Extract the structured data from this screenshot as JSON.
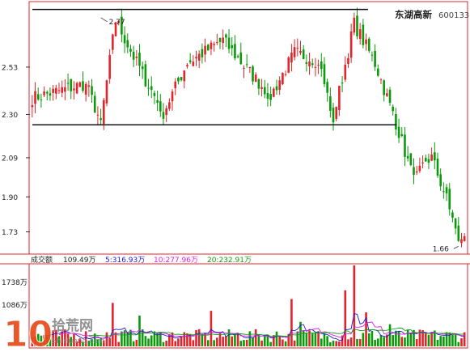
{
  "header": {
    "stock_name": "东湖高新",
    "stock_code": "600133"
  },
  "colors": {
    "up": "#e3242b",
    "down": "#0a9a0a",
    "frame": "#e3242b",
    "axis_text": "#222222",
    "ma5": "#1a1ad0",
    "ma10": "#e020e0",
    "ma20": "#10a010",
    "watermark": "#e84a1a"
  },
  "chart_data": [
    {
      "type": "candlestick",
      "y_ticks": [
        1.73,
        1.9,
        2.09,
        2.3,
        2.53
      ],
      "y_tick_labels": [
        "1.73",
        "1.90",
        "2.09",
        "2.30",
        "2.53"
      ],
      "ylim": [
        1.63,
        2.84
      ],
      "bar_count": 146,
      "resistance_line": 2.81,
      "support_line": 2.25,
      "annotations": [
        {
          "label": "2.77",
          "value": 2.77,
          "bar": 23
        },
        {
          "label": "1.66",
          "value": 1.66,
          "bar": 143
        }
      ],
      "segments": [
        {
          "from": 0,
          "to": 18,
          "start": 2.38,
          "end": 2.45
        },
        {
          "from": 18,
          "to": 23,
          "start": 2.45,
          "end": 2.26
        },
        {
          "from": 23,
          "to": 28,
          "start": 2.26,
          "end": 2.76
        },
        {
          "from": 28,
          "to": 36,
          "start": 2.76,
          "end": 2.52
        },
        {
          "from": 36,
          "to": 44,
          "start": 2.52,
          "end": 2.31
        },
        {
          "from": 44,
          "to": 52,
          "start": 2.31,
          "end": 2.55
        },
        {
          "from": 52,
          "to": 64,
          "start": 2.55,
          "end": 2.66
        },
        {
          "from": 64,
          "to": 72,
          "start": 2.66,
          "end": 2.52
        },
        {
          "from": 72,
          "to": 80,
          "start": 2.52,
          "end": 2.39
        },
        {
          "from": 80,
          "to": 88,
          "start": 2.39,
          "end": 2.6
        },
        {
          "from": 88,
          "to": 96,
          "start": 2.6,
          "end": 2.56
        },
        {
          "from": 96,
          "to": 101,
          "start": 2.56,
          "end": 2.28
        },
        {
          "from": 101,
          "to": 108,
          "start": 2.28,
          "end": 2.74
        },
        {
          "from": 108,
          "to": 115,
          "start": 2.74,
          "end": 2.55
        },
        {
          "from": 115,
          "to": 122,
          "start": 2.55,
          "end": 2.26
        },
        {
          "from": 122,
          "to": 128,
          "start": 2.26,
          "end": 1.98
        },
        {
          "from": 128,
          "to": 134,
          "start": 1.98,
          "end": 2.09
        },
        {
          "from": 134,
          "to": 140,
          "start": 2.09,
          "end": 1.85
        },
        {
          "from": 140,
          "to": 143,
          "start": 1.85,
          "end": 1.67
        },
        {
          "from": 143,
          "to": 146,
          "start": 1.67,
          "end": 1.76
        }
      ]
    },
    {
      "type": "bar",
      "title": "成交额",
      "legend": [
        {
          "label": "109.49万",
          "series": "current"
        },
        {
          "label": "5:316.93万",
          "series": "ma5"
        },
        {
          "label": "10:277.96万",
          "series": "ma10"
        },
        {
          "label": "20:232.91万",
          "series": "ma20"
        }
      ],
      "y_tick_labels": [
        "1738万",
        "1086万"
      ],
      "y_ticks": [
        1738,
        1086
      ],
      "ylim": [
        0,
        2050
      ],
      "base_volume": 300,
      "spikes": [
        {
          "bar": 27,
          "value": 1100
        },
        {
          "bar": 36,
          "value": 780
        },
        {
          "bar": 60,
          "value": 900
        },
        {
          "bar": 87,
          "value": 1200
        },
        {
          "bar": 90,
          "value": 620
        },
        {
          "bar": 105,
          "value": 1420
        },
        {
          "bar": 108,
          "value": 2050
        },
        {
          "bar": 112,
          "value": 860
        },
        {
          "bar": 120,
          "value": 560
        }
      ]
    }
  ],
  "watermark": {
    "number": "10",
    "cn": "拾荒网",
    "en": "ShiHuang.com"
  }
}
